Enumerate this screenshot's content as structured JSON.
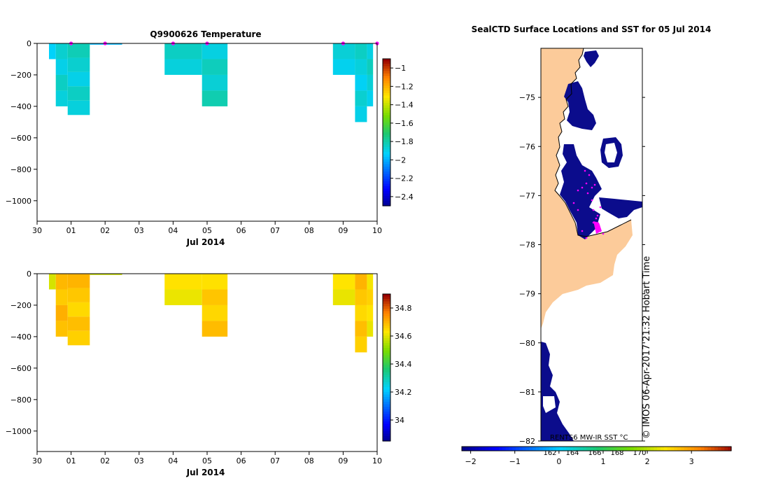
{
  "colors": {
    "temp_cell": "#1ec88a",
    "temp_cell_dark": "#1bbf84",
    "sal_cell": "#f5a516",
    "sal_cell_dark": "#ee9012",
    "sal_cell_darker": "#e07d12",
    "land": "#fccb9a",
    "sst_cold": "#0b0c8c",
    "marker": "#ff00ff",
    "axis": "#000000"
  },
  "chart_data": [
    {
      "id": "temperature",
      "type": "heatmap",
      "title": "Q9900626  Temperature",
      "xlabel": "Jul 2014",
      "ylabel": "",
      "x_tick_labels": [
        "30",
        "01",
        "02",
        "03",
        "04",
        "05",
        "06",
        "07",
        "08",
        "09",
        "10"
      ],
      "x_range_days": [
        0,
        10
      ],
      "ylim": [
        -1130,
        0
      ],
      "y_ticks": [
        0,
        -200,
        -400,
        -600,
        -800,
        -1000
      ],
      "y_tick_labels": [
        "0",
        "−200",
        "−400",
        "−600",
        "−800",
        "−1000"
      ],
      "colorbar": {
        "ticks": [
          -1,
          -1.2,
          -1.4,
          -1.6,
          -1.8,
          -2,
          -2.2,
          -2.4
        ],
        "tick_labels": [
          "−1",
          "−1.2",
          "−1.4",
          "−1.6",
          "−1.8",
          "−2",
          "−2.2",
          "−2.4"
        ],
        "range": [
          -2.5,
          -0.9
        ]
      },
      "casts": [
        {
          "t0": 0.35,
          "t1": 0.55,
          "depth": 100,
          "value": -1.88
        },
        {
          "t0": 0.55,
          "t1": 0.9,
          "depth": 400,
          "value": -1.85
        },
        {
          "t0": 0.9,
          "t1": 1.55,
          "depth": 455,
          "value": -1.85
        },
        {
          "t0": 1.55,
          "t1": 2.5,
          "depth": 8,
          "value": -1.95
        },
        {
          "t0": 3.75,
          "t1": 4.85,
          "depth": 200,
          "value": -1.85
        },
        {
          "t0": 4.85,
          "t1": 5.6,
          "depth": 400,
          "value": -1.84
        },
        {
          "t0": 8.7,
          "t1": 9.35,
          "depth": 200,
          "value": -1.86
        },
        {
          "t0": 9.35,
          "t1": 9.7,
          "depth": 500,
          "value": -1.87
        },
        {
          "t0": 9.7,
          "t1": 9.88,
          "depth": 400,
          "value": -1.86
        }
      ],
      "surface_markers_days": [
        1.0,
        2.0,
        4.0,
        5.0,
        9.0,
        10.0
      ]
    },
    {
      "id": "salinity",
      "type": "heatmap",
      "title": "",
      "xlabel": "Jul 2014",
      "ylabel": "",
      "x_tick_labels": [
        "30",
        "01",
        "02",
        "03",
        "04",
        "05",
        "06",
        "07",
        "08",
        "09",
        "10"
      ],
      "x_range_days": [
        0,
        10
      ],
      "ylim": [
        -1130,
        0
      ],
      "y_ticks": [
        0,
        -200,
        -400,
        -600,
        -800,
        -1000
      ],
      "y_tick_labels": [
        "0",
        "−200",
        "−400",
        "−600",
        "−800",
        "−1000"
      ],
      "colorbar": {
        "ticks": [
          34.8,
          34.6,
          34.4,
          34.2,
          34
        ],
        "tick_labels": [
          "34.8",
          "34.6",
          "34.4",
          "34.2",
          "34"
        ],
        "range": [
          33.85,
          34.9
        ]
      },
      "casts": [
        {
          "t0": 0.35,
          "t1": 0.55,
          "depth": 100,
          "value": 34.62
        },
        {
          "t0": 0.55,
          "t1": 0.9,
          "depth": 400,
          "value": 34.7
        },
        {
          "t0": 0.9,
          "t1": 1.55,
          "depth": 455,
          "value": 34.68
        },
        {
          "t0": 1.55,
          "t1": 2.5,
          "depth": 8,
          "value": 34.6
        },
        {
          "t0": 3.75,
          "t1": 4.85,
          "depth": 200,
          "value": 34.63
        },
        {
          "t0": 4.85,
          "t1": 5.6,
          "depth": 400,
          "value": 34.67
        },
        {
          "t0": 8.7,
          "t1": 9.35,
          "depth": 200,
          "value": 34.64
        },
        {
          "t0": 9.35,
          "t1": 9.7,
          "depth": 500,
          "value": 34.68
        },
        {
          "t0": 9.7,
          "t1": 9.88,
          "depth": 400,
          "value": 34.64
        }
      ]
    },
    {
      "id": "sst_map",
      "type": "map",
      "title": "SealCTD Surface Locations and SST for 05 Jul 2014",
      "lat_ticks": [
        -75,
        -76,
        -77,
        -78,
        -79,
        -80,
        -81,
        -82
      ],
      "lat_tick_labels": [
        "−75",
        "−76",
        "−77",
        "−78",
        "−79",
        "−80",
        "−81",
        "−82"
      ],
      "lat_range": [
        -82,
        -74
      ],
      "lon_tick_labels": [
        "162",
        "164",
        "166",
        "168",
        "170"
      ],
      "product_label": "RENTS6 MW-IR SST °C",
      "stamp": "© IMOS 06-Apr-2017 21:32 Hobart Time",
      "colorbar": {
        "ticks": [
          -2,
          -1,
          0,
          1,
          2,
          3
        ],
        "tick_labels": [
          "−2",
          "−1",
          "0",
          "1",
          "2",
          "3"
        ],
        "range": [
          -2.2,
          3.9
        ]
      }
    }
  ]
}
